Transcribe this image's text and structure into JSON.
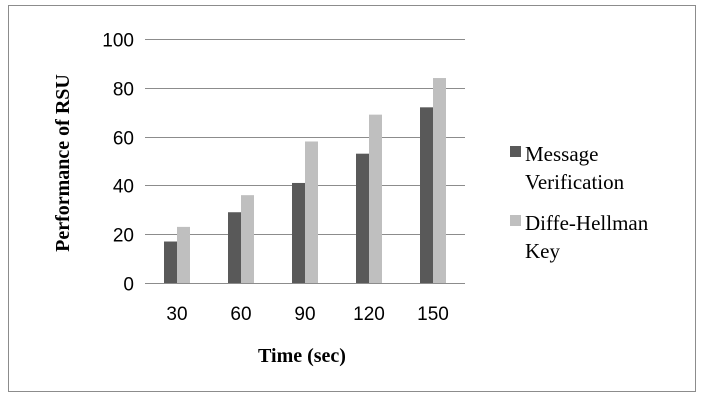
{
  "chart_data": {
    "type": "bar",
    "title": "",
    "xlabel": "Time (sec)",
    "ylabel": "Performance of RSU",
    "categories": [
      "30",
      "60",
      "90",
      "120",
      "150"
    ],
    "ylim": [
      0,
      100
    ],
    "yticks": [
      "0",
      "20",
      "40",
      "60",
      "80",
      "100"
    ],
    "grid": true,
    "legend_position": "right",
    "series": [
      {
        "name": "Message Verification",
        "legend_lines": [
          "Message",
          "Verification"
        ],
        "color": "#595959",
        "values": [
          17,
          29,
          41,
          53,
          72
        ]
      },
      {
        "name": "Diffe-Hellman Key",
        "legend_lines": [
          "Diffe-Hellman",
          "Key"
        ],
        "color": "#bfbfbf",
        "values": [
          23,
          36,
          58,
          69,
          84
        ]
      }
    ]
  }
}
